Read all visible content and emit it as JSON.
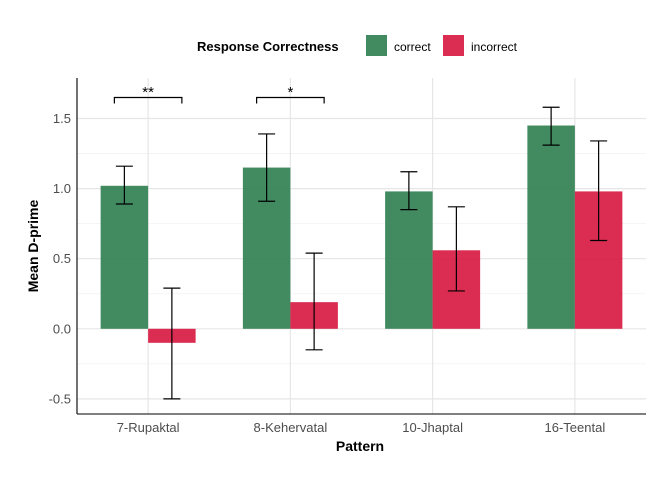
{
  "chart_data": {
    "type": "bar",
    "title": "",
    "xlabel": "Pattern",
    "ylabel": "Mean D-prime",
    "ylim": [
      -0.6,
      1.78
    ],
    "yticks": [
      -0.5,
      0.0,
      0.5,
      1.0,
      1.5
    ],
    "ytick_labels": [
      "-0.5",
      "0.0",
      "0.5",
      "1.0",
      "1.5"
    ],
    "grid": true,
    "legend_position": "top",
    "legend_title": "Response Correctness",
    "categories": [
      "7-Rupaktal",
      "8-Kehervatal",
      "10-Jhaptal",
      "16-Teental"
    ],
    "series": [
      {
        "name": "correct",
        "color": "#2e7d4f",
        "values": [
          1.02,
          1.15,
          0.98,
          1.45
        ],
        "err_low": [
          0.89,
          0.91,
          0.85,
          1.31
        ],
        "err_high": [
          1.16,
          1.39,
          1.12,
          1.58
        ]
      },
      {
        "name": "incorrect",
        "color": "#d7153e",
        "values": [
          -0.1,
          0.19,
          0.56,
          0.98
        ],
        "err_low": [
          -0.5,
          -0.15,
          0.27,
          0.63
        ],
        "err_high": [
          0.29,
          0.54,
          0.87,
          1.34
        ]
      }
    ],
    "significance": [
      {
        "category_index": 0,
        "label": "**"
      },
      {
        "category_index": 1,
        "label": "*"
      }
    ]
  }
}
